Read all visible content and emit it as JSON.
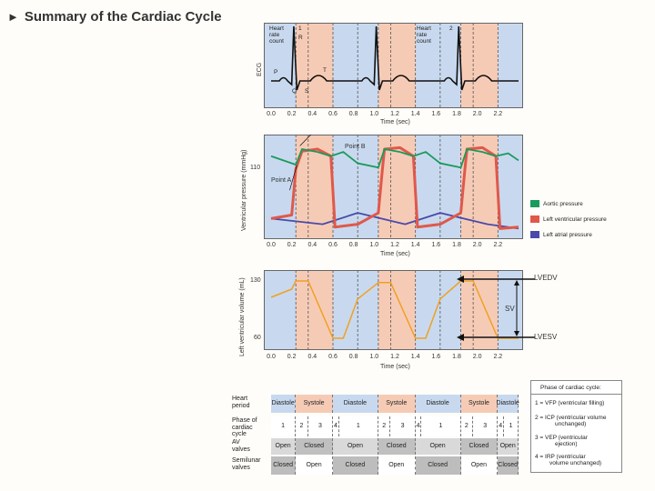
{
  "title": "Summary of the Cardiac Cycle",
  "title_marker": "►",
  "time_ticks": [
    "0.0",
    "0.2",
    "0.4",
    "0.6",
    "0.8",
    "1.0",
    "1.2",
    "1.4",
    "1.6",
    "1.8",
    "2.0",
    "2.2"
  ],
  "time_axis_label": "Time (sec)",
  "ecg": {
    "ylabel": "ECG",
    "hr1": {
      "word1": "Heart",
      "word2": "rate",
      "word3": "count",
      "num": "1"
    },
    "hr2": {
      "word1": "Heart",
      "word2": "rate",
      "word3": "count",
      "num": "2"
    },
    "wave_labels": {
      "P": "P",
      "Q": "Q",
      "R": "R",
      "S": "S",
      "T": "T"
    }
  },
  "pressure": {
    "ylabel": "Ventricular pressure (mmHg)",
    "ytick": "110",
    "point_a": "Point A",
    "point_b": "Point B",
    "legend": [
      {
        "label": "Aortic pressure",
        "color": "#1a9a5c"
      },
      {
        "label": "Left ventricular pressure",
        "color": "#e0584a"
      },
      {
        "label": "Left atrial pressure",
        "color": "#4a4aa8"
      }
    ]
  },
  "volume": {
    "ylabel": "Left ventricular volume (mL)",
    "yticks": [
      "130",
      "60"
    ],
    "lvedv": "LVEDV",
    "sv": "SV",
    "lvesv": "LVESV"
  },
  "chart_data": {
    "type": "line",
    "xlabel": "Time (sec)",
    "xlim": [
      0,
      2.4
    ],
    "phase_boundaries": [
      0.24,
      0.36,
      0.6,
      0.84,
      1.04,
      1.16,
      1.4,
      1.64,
      1.84,
      1.96,
      2.2
    ],
    "series": [
      {
        "name": "Aortic pressure",
        "x": [
          0.0,
          0.24,
          0.3,
          0.45,
          0.58,
          0.7,
          0.84,
          1.04,
          1.1,
          1.25,
          1.38,
          1.5,
          1.64,
          1.84,
          1.9,
          2.05,
          2.18,
          2.3,
          2.4
        ],
        "values": [
          108,
          96,
          118,
          114,
          108,
          114,
          98,
          92,
          118,
          114,
          108,
          114,
          98,
          92,
          118,
          114,
          108,
          112,
          102
        ]
      },
      {
        "name": "Left ventricular pressure",
        "x": [
          0.0,
          0.2,
          0.24,
          0.3,
          0.45,
          0.58,
          0.62,
          0.84,
          1.04,
          1.08,
          1.1,
          1.25,
          1.38,
          1.42,
          1.64,
          1.84,
          1.88,
          1.9,
          2.05,
          2.18,
          2.22,
          2.4
        ],
        "values": [
          20,
          25,
          90,
          115,
          118,
          108,
          8,
          12,
          28,
          90,
          118,
          120,
          108,
          8,
          12,
          28,
          90,
          118,
          120,
          108,
          6,
          8
        ]
      },
      {
        "name": "Left atrial pressure",
        "x": [
          0.0,
          0.5,
          0.84,
          1.3,
          1.64,
          2.1,
          2.4
        ],
        "values": [
          20,
          12,
          28,
          12,
          28,
          12,
          6
        ]
      },
      {
        "name": "Left ventricular volume",
        "x": [
          0.0,
          0.2,
          0.24,
          0.36,
          0.6,
          0.7,
          0.84,
          1.04,
          1.16,
          1.4,
          1.5,
          1.64,
          1.84,
          1.96,
          2.2,
          2.4
        ],
        "values": [
          112,
          122,
          132,
          132,
          62,
          62,
          110,
          130,
          130,
          62,
          62,
          110,
          132,
          132,
          62,
          62
        ]
      }
    ]
  },
  "phases_box": {
    "title": "Phase of cardiac cycle:",
    "items": [
      {
        "num": "1 =",
        "text": "VFP (ventricular filling)",
        "sub": ""
      },
      {
        "num": "2 =",
        "text": "ICP (ventricular volume",
        "sub": "unchanged)"
      },
      {
        "num": "3 =",
        "text": "VEP (ventricular",
        "sub": "ejection)"
      },
      {
        "num": "4 =",
        "text": "IRP (ventricular",
        "sub": "volume unchanged)"
      }
    ]
  },
  "table": {
    "rows": [
      {
        "label": [
          "Heart",
          "period"
        ],
        "cells": [
          "Diastole",
          "Systole",
          "Diastole",
          "Systole",
          "Diastole",
          "Systole",
          "Diastole"
        ]
      },
      {
        "label": [
          "Phase of",
          "cardiac",
          "cycle"
        ],
        "cells": [
          "1",
          "2",
          "3",
          "4",
          "1",
          "2",
          "3",
          "4",
          "1",
          "2",
          "3",
          "4",
          "1"
        ]
      },
      {
        "label": [
          "AV",
          "valves"
        ],
        "cells": [
          "Open",
          "Closed",
          "Open",
          "Closed",
          "Open",
          "Closed",
          "Open"
        ]
      },
      {
        "label": [
          "Semilunar",
          "valves"
        ],
        "cells": [
          "Closed",
          "Open",
          "Closed",
          "Open",
          "Closed",
          "Open",
          "Closed"
        ]
      }
    ]
  }
}
